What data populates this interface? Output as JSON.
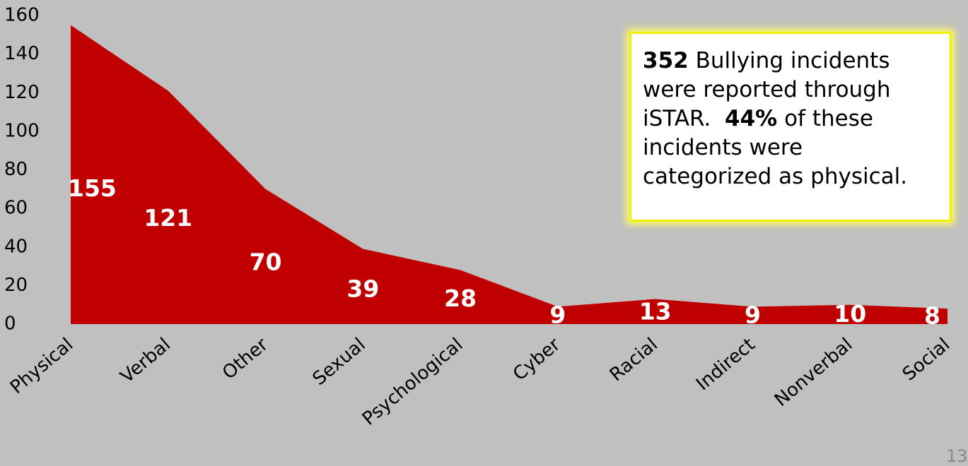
{
  "chart_data": {
    "type": "area",
    "categories": [
      "Physical",
      "Verbal",
      "Other",
      "Sexual",
      "Psychological",
      "Cyber",
      "Racial",
      "Indirect",
      "Nonverbal",
      "Social"
    ],
    "values": [
      155,
      121,
      70,
      39,
      28,
      9,
      13,
      9,
      10,
      8
    ],
    "color": "#c00000",
    "ylim": [
      0,
      160
    ],
    "yticks": [
      0,
      20,
      40,
      60,
      80,
      100,
      120,
      140,
      160
    ],
    "grid": false,
    "data_labels": true,
    "annotation": [
      "352",
      " Bullying incidents were reported through iSTAR.  ",
      "44%",
      " of these incidents were categorized as physical."
    ],
    "page_number": "13"
  }
}
